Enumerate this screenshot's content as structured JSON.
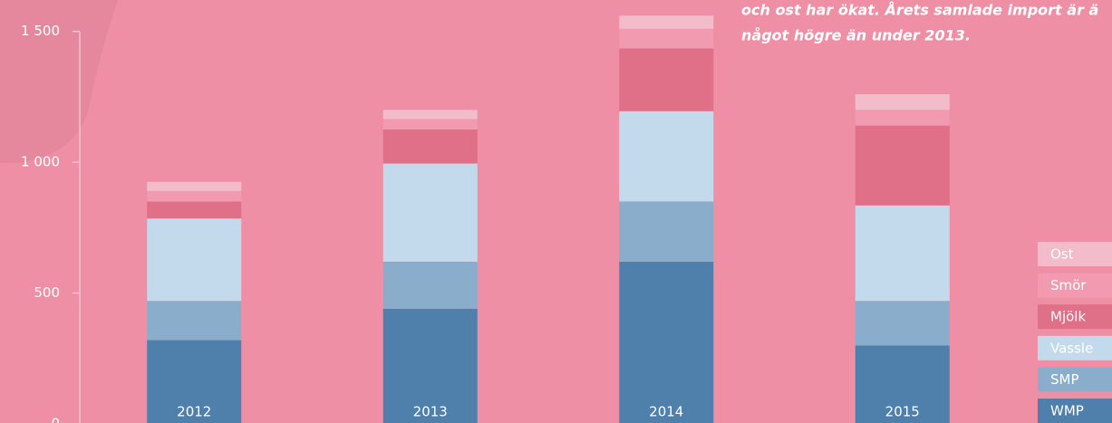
{
  "chart_data": {
    "type": "stacked_bar",
    "annotation": [
      "och ost har ökat. Årets samlade import är ä",
      "något högre än under 2013."
    ],
    "categories": [
      "2012",
      "2013",
      "2014",
      "2015"
    ],
    "series": [
      {
        "name": "WMP",
        "color": "#4f7fab",
        "values": [
          320,
          440,
          620,
          300
        ]
      },
      {
        "name": "SMP",
        "color": "#8aadcb",
        "values": [
          150,
          180,
          230,
          170
        ]
      },
      {
        "name": "Vassle",
        "color": "#c3d9ec",
        "values": [
          315,
          375,
          345,
          365
        ]
      },
      {
        "name": "Mjölk",
        "color": "#e06f88",
        "values": [
          65,
          130,
          240,
          305
        ]
      },
      {
        "name": "Smör",
        "color": "#f29ab0",
        "values": [
          40,
          40,
          75,
          60
        ]
      },
      {
        "name": "Ost",
        "color": "#f2bccb",
        "values": [
          35,
          35,
          50,
          60
        ]
      }
    ],
    "ylim": [
      0,
      1620
    ],
    "yticks": [
      0,
      500,
      {
        "value": 1000,
        "label": "1 000"
      },
      {
        "value": 1500,
        "label": "1 500"
      }
    ]
  }
}
